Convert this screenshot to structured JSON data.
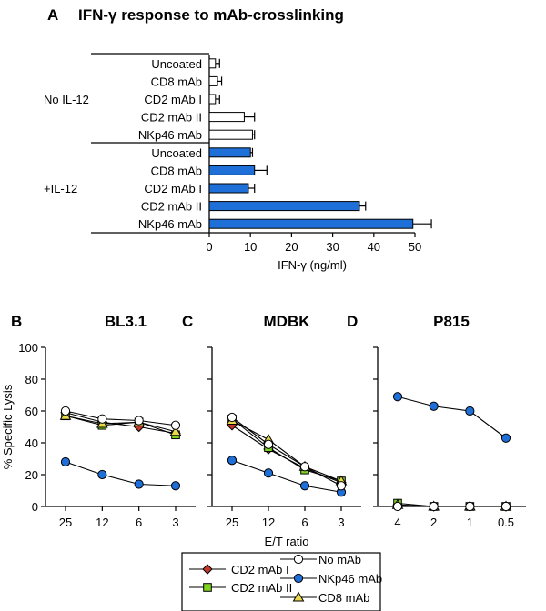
{
  "colors": {
    "blue": "#1f6fd8",
    "white": "#ffffff",
    "red": "#c0392b",
    "green": "#7ed321",
    "yellow": "#e8d84a",
    "black": "#000000"
  },
  "chart_data": [
    {
      "id": "A",
      "type": "bar",
      "orientation": "horizontal",
      "panel_letter": "A",
      "title": "IFN-γ response to mAb-crosslinking",
      "xlabel": "IFN-γ (ng/ml)",
      "xlim": [
        0,
        50
      ],
      "xticks": [
        "0",
        "10",
        "20",
        "30",
        "40",
        "50"
      ],
      "groups": [
        {
          "label": "No IL-12",
          "fill": "white",
          "categories": [
            "Uncoated",
            "CD8 mAb",
            "CD2 mAb I",
            "CD2 mAb II",
            "NKp46 mAb"
          ],
          "values": [
            1.5,
            2,
            1.5,
            8.5,
            10.5
          ],
          "errors": [
            1,
            1,
            1,
            2.5,
            0.5
          ]
        },
        {
          "label": "+IL-12",
          "fill": "blue",
          "categories": [
            "Uncoated",
            "CD8 mAb",
            "CD2 mAb I",
            "CD2 mAb II",
            "NKp46 mAb"
          ],
          "values": [
            10,
            11,
            9.5,
            36.5,
            49.5
          ],
          "errors": [
            0.5,
            3,
            1.5,
            1.5,
            4.5
          ]
        }
      ]
    },
    {
      "id": "B",
      "type": "line",
      "panel_letter": "B",
      "title": "BL3.1",
      "ylabel": "% Specific Lysis",
      "ylim": [
        0,
        100
      ],
      "yticks": [
        "0",
        "20",
        "40",
        "60",
        "80",
        "100"
      ],
      "categories": [
        "25",
        "12",
        "6",
        "3"
      ],
      "series": [
        {
          "name": "CD2 mAb I",
          "values": [
            59,
            53,
            50,
            46
          ]
        },
        {
          "name": "CD2 mAb II",
          "values": [
            57,
            51,
            53,
            45
          ]
        },
        {
          "name": "CD8 mAb",
          "values": [
            57,
            52,
            53,
            47
          ]
        },
        {
          "name": "No mAb",
          "values": [
            60,
            55,
            54,
            51
          ]
        },
        {
          "name": "NKp46 mAb",
          "values": [
            28,
            20,
            14,
            13
          ]
        }
      ]
    },
    {
      "id": "C",
      "type": "line",
      "panel_letter": "C",
      "title": "MDBK",
      "xlabel": "E/T ratio",
      "ylim": [
        0,
        100
      ],
      "categories": [
        "25",
        "12",
        "6",
        "3"
      ],
      "series": [
        {
          "name": "CD2 mAb I",
          "values": [
            51,
            36,
            24,
            15
          ]
        },
        {
          "name": "CD2 mAb II",
          "values": [
            55,
            37,
            23,
            16
          ]
        },
        {
          "name": "CD8 mAb",
          "values": [
            54,
            42,
            25,
            16
          ]
        },
        {
          "name": "No mAb",
          "values": [
            56,
            39,
            25,
            13
          ]
        },
        {
          "name": "NKp46 mAb",
          "values": [
            29,
            21,
            13,
            9
          ]
        }
      ]
    },
    {
      "id": "D",
      "type": "line",
      "panel_letter": "D",
      "title": "P815",
      "ylim": [
        0,
        100
      ],
      "categories": [
        "4",
        "2",
        "1",
        "0.5"
      ],
      "series": [
        {
          "name": "CD2 mAb I",
          "values": [
            1,
            0,
            0,
            0
          ]
        },
        {
          "name": "CD2 mAb II",
          "values": [
            2,
            0,
            0,
            0
          ]
        },
        {
          "name": "CD8 mAb",
          "values": [
            1,
            0,
            0,
            0
          ]
        },
        {
          "name": "No mAb",
          "values": [
            0,
            0,
            0,
            0
          ]
        },
        {
          "name": "NKp46 mAb",
          "values": [
            69,
            63,
            60,
            43
          ]
        }
      ]
    }
  ],
  "legend": {
    "placement": "bottom-center",
    "entries": [
      {
        "name": "CD2 mAb I",
        "marker": "diamond",
        "color": "red"
      },
      {
        "name": "CD2 mAb II",
        "marker": "square",
        "color": "green"
      },
      {
        "name": "No mAb",
        "marker": "circle",
        "color": "white"
      },
      {
        "name": "NKp46 mAb",
        "marker": "circle",
        "color": "blue"
      },
      {
        "name": "CD8 mAb",
        "marker": "triangle",
        "color": "yellow"
      }
    ]
  }
}
